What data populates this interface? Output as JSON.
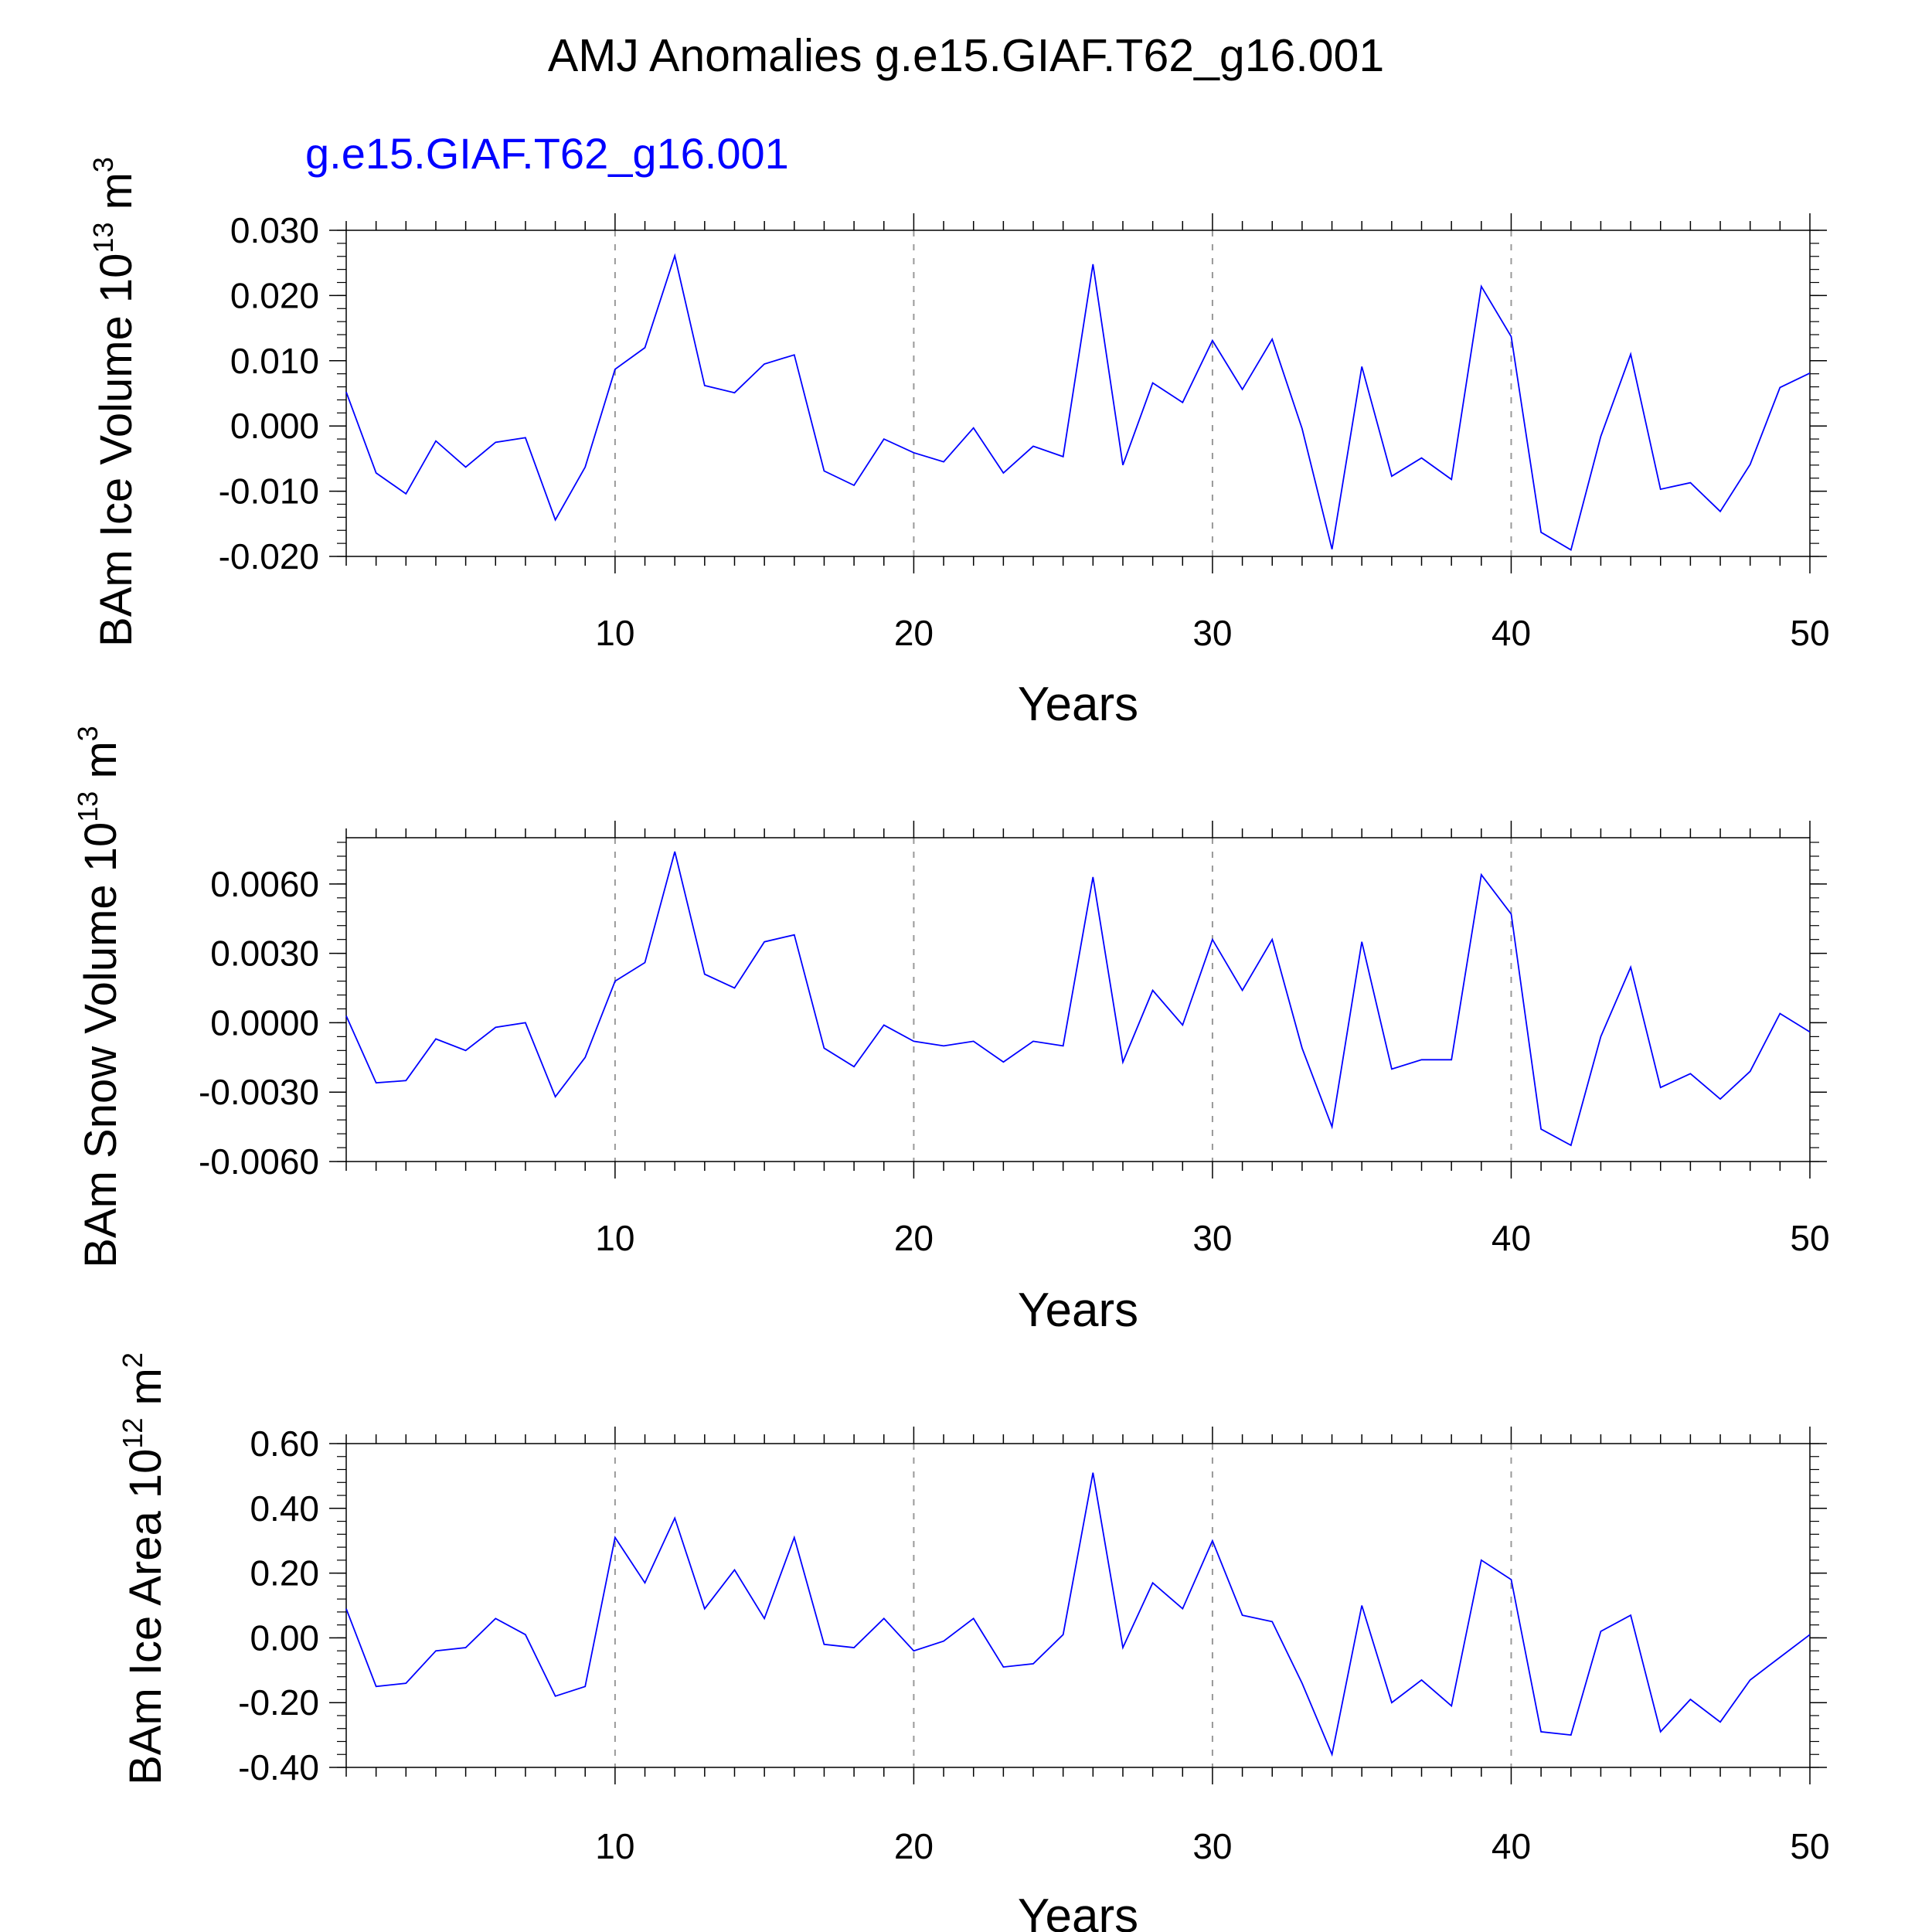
{
  "figure": {
    "title": "AMJ Anomalies g.e15.GIAF.T62_g16.001",
    "subtitle": "g.e15.GIAF.T62_g16.001",
    "line_color": "#0000ff",
    "subtitle_color": "#0000ff",
    "grid_color": "#999999"
  },
  "chart_data": [
    {
      "type": "line",
      "panel": "top",
      "ylabel": {
        "base": "BAm Ice Volume 10",
        "exp1": "13",
        "mid": " m",
        "exp2": "3"
      },
      "xlabel": "Years",
      "xlim": [
        1,
        50
      ],
      "ylim": [
        -0.02,
        0.03
      ],
      "x_ticks": [
        "10",
        "20",
        "30",
        "40",
        "50"
      ],
      "x_tick_values": [
        10,
        20,
        30,
        40,
        50
      ],
      "y_ticks": [
        "-0.020",
        "-0.010",
        "0.000",
        "0.010",
        "0.020",
        "0.030"
      ],
      "y_tick_values": [
        -0.02,
        -0.01,
        0.0,
        0.01,
        0.02,
        0.03
      ],
      "grid": "dashed vertical at x ticks",
      "x": [
        1,
        2,
        3,
        4,
        5,
        6,
        7,
        8,
        9,
        10,
        11,
        12,
        13,
        14,
        15,
        16,
        17,
        18,
        19,
        20,
        21,
        22,
        23,
        24,
        25,
        26,
        27,
        28,
        29,
        30,
        31,
        32,
        33,
        34,
        35,
        36,
        37,
        38,
        39,
        40,
        41,
        42,
        43,
        44,
        45,
        46,
        47,
        48,
        49,
        50
      ],
      "values": [
        0.0052,
        -0.0072,
        -0.0104,
        -0.0023,
        -0.0063,
        -0.0025,
        -0.0018,
        -0.0144,
        -0.0063,
        0.0087,
        0.012,
        0.0261,
        0.0062,
        0.0051,
        0.0095,
        0.0109,
        -0.0069,
        -0.0091,
        -0.002,
        -0.0041,
        -0.0055,
        -0.0003,
        -0.0072,
        -0.0031,
        -0.0047,
        0.0248,
        -0.006,
        0.0066,
        0.0036,
        0.0131,
        0.0056,
        0.0133,
        -0.0004,
        -0.0189,
        0.0091,
        -0.0077,
        -0.0049,
        -0.0082,
        0.0214,
        0.0137,
        -0.0163,
        -0.019,
        -0.0016,
        0.011,
        -0.0097,
        -0.0087,
        -0.0131,
        -0.0059,
        0.0059,
        0.0081
      ]
    },
    {
      "type": "line",
      "panel": "middle",
      "ylabel": {
        "base": "BAm Snow Volume 10",
        "exp1": "13",
        "mid": " m",
        "exp2": "3"
      },
      "xlabel": "Years",
      "xlim": [
        1,
        50
      ],
      "ylim": [
        -0.006,
        0.008
      ],
      "x_ticks": [
        "10",
        "20",
        "30",
        "40",
        "50"
      ],
      "x_tick_values": [
        10,
        20,
        30,
        40,
        50
      ],
      "y_ticks": [
        "-0.0060",
        "-0.0030",
        "0.0000",
        "0.0030",
        "0.0060"
      ],
      "y_tick_values": [
        -0.006,
        -0.003,
        0.0,
        0.003,
        0.006
      ],
      "grid": "dashed vertical at x ticks",
      "x": [
        1,
        2,
        3,
        4,
        5,
        6,
        7,
        8,
        9,
        10,
        11,
        12,
        13,
        14,
        15,
        16,
        17,
        18,
        19,
        20,
        21,
        22,
        23,
        24,
        25,
        26,
        27,
        28,
        29,
        30,
        31,
        32,
        33,
        34,
        35,
        36,
        37,
        38,
        39,
        40,
        41,
        42,
        43,
        44,
        45,
        46,
        47,
        48,
        49,
        50
      ],
      "values": [
        0.0003,
        -0.0026,
        -0.0025,
        -0.0007,
        -0.0012,
        -0.0002,
        0.0,
        -0.0032,
        -0.0015,
        0.0018,
        0.0026,
        0.0074,
        0.0021,
        0.0015,
        0.0035,
        0.0038,
        -0.0011,
        -0.0019,
        -0.0001,
        -0.0008,
        -0.001,
        -0.0008,
        -0.0017,
        -0.0008,
        -0.001,
        0.0063,
        -0.0017,
        0.0014,
        -0.0001,
        0.0036,
        0.0014,
        0.0036,
        -0.0011,
        -0.0045,
        0.0035,
        -0.002,
        -0.0016,
        -0.0016,
        0.0064,
        0.0047,
        -0.0046,
        -0.0053,
        -0.0006,
        0.0024,
        -0.0028,
        -0.0022,
        -0.0033,
        -0.0021,
        0.0004,
        -0.0004
      ]
    },
    {
      "type": "line",
      "panel": "bottom",
      "ylabel": {
        "base": "BAm Ice Area 10",
        "exp1": "12",
        "mid": " m",
        "exp2": "2"
      },
      "xlabel": "Years",
      "xlim": [
        1,
        50
      ],
      "ylim": [
        -0.4,
        0.6
      ],
      "x_ticks": [
        "10",
        "20",
        "30",
        "40",
        "50"
      ],
      "x_tick_values": [
        10,
        20,
        30,
        40,
        50
      ],
      "y_ticks": [
        "-0.40",
        "-0.20",
        "0.00",
        "0.20",
        "0.40",
        "0.60"
      ],
      "y_tick_values": [
        -0.4,
        -0.2,
        0.0,
        0.2,
        0.4,
        0.6
      ],
      "grid": "dashed vertical at x ticks",
      "x": [
        1,
        2,
        3,
        4,
        5,
        6,
        7,
        8,
        9,
        10,
        11,
        12,
        13,
        14,
        15,
        16,
        17,
        18,
        19,
        20,
        21,
        22,
        23,
        24,
        25,
        26,
        27,
        28,
        29,
        30,
        31,
        32,
        33,
        34,
        35,
        36,
        37,
        38,
        39,
        40,
        41,
        42,
        43,
        44,
        45,
        46,
        47,
        48,
        49,
        50
      ],
      "values": [
        0.09,
        -0.15,
        -0.14,
        -0.04,
        -0.03,
        0.06,
        0.01,
        -0.18,
        -0.15,
        0.31,
        0.17,
        0.37,
        0.09,
        0.21,
        0.06,
        0.31,
        -0.02,
        -0.03,
        0.06,
        -0.04,
        -0.01,
        0.06,
        -0.09,
        -0.08,
        0.01,
        0.51,
        -0.03,
        0.17,
        0.09,
        0.3,
        0.07,
        0.05,
        -0.14,
        -0.36,
        0.1,
        -0.2,
        -0.13,
        -0.21,
        0.24,
        0.18,
        -0.29,
        -0.3,
        0.02,
        0.07,
        -0.29,
        -0.19,
        -0.26,
        -0.13,
        -0.06,
        0.01
      ]
    }
  ]
}
